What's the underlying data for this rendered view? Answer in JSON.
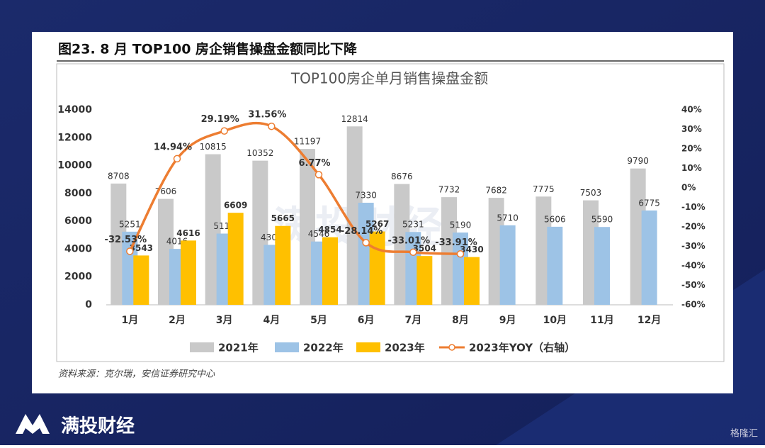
{
  "header": {
    "title": "图23. 8 月 TOP100 房企销售操盘金额同比下降"
  },
  "source": "资料来源：克尔瑞，安信证券研究中心",
  "overlay_watermark": "满投财经",
  "brand": "满投财经",
  "corner_watermark": "格隆汇",
  "chart_data": {
    "type": "bar",
    "title": "TOP100房企单月销售操盘金额",
    "categories": [
      "1月",
      "2月",
      "3月",
      "4月",
      "5月",
      "6月",
      "7月",
      "8月",
      "9月",
      "10月",
      "11月",
      "12月"
    ],
    "series": [
      {
        "name": "2021年",
        "color": "#c9c9c9",
        "values": [
          8708,
          7606,
          10815,
          10352,
          11197,
          12814,
          8676,
          7732,
          7682,
          7775,
          7503,
          9790
        ]
      },
      {
        "name": "2022年",
        "color": "#9dc3e6",
        "values": [
          5251,
          4016,
          5115,
          4306,
          4546,
          7330,
          5231,
          5190,
          5710,
          5606,
          5590,
          6775
        ]
      },
      {
        "name": "2023年",
        "color": "#ffc000",
        "values": [
          3543,
          4616,
          6609,
          5665,
          4854,
          5267,
          3504,
          3430,
          null,
          null,
          null,
          null
        ]
      },
      {
        "name": "2023年YOY（右轴）",
        "color": "#ed7d31",
        "type": "line",
        "axis": "y2",
        "values": [
          -32.53,
          14.94,
          29.19,
          31.56,
          6.77,
          -28.14,
          -33.01,
          -33.91,
          null,
          null,
          null,
          null
        ],
        "value_labels": [
          "-32.53%",
          "14.94%",
          "29.19%",
          "31.56%",
          "6.77%",
          "-28.14%",
          "-33.01%",
          "-33.91%",
          null,
          null,
          null,
          null
        ]
      }
    ],
    "ylim": [
      0,
      14000
    ],
    "yticks": [
      0,
      2000,
      4000,
      6000,
      8000,
      10000,
      12000,
      14000
    ],
    "y2lim": [
      -60,
      40
    ],
    "y2ticks": [
      {
        "value": -60,
        "label": "-60%"
      },
      {
        "value": -50,
        "label": "-50%"
      },
      {
        "value": -40,
        "label": "-40%"
      },
      {
        "value": -30,
        "label": "-30%"
      },
      {
        "value": -20,
        "label": "-20%"
      },
      {
        "value": -10,
        "label": "-10%"
      },
      {
        "value": 0,
        "label": "0%"
      },
      {
        "value": 10,
        "label": "10%"
      },
      {
        "value": 20,
        "label": "20%"
      },
      {
        "value": 30,
        "label": "30%"
      },
      {
        "value": 40,
        "label": "40%"
      }
    ],
    "legend": "bottom",
    "grid": false
  }
}
